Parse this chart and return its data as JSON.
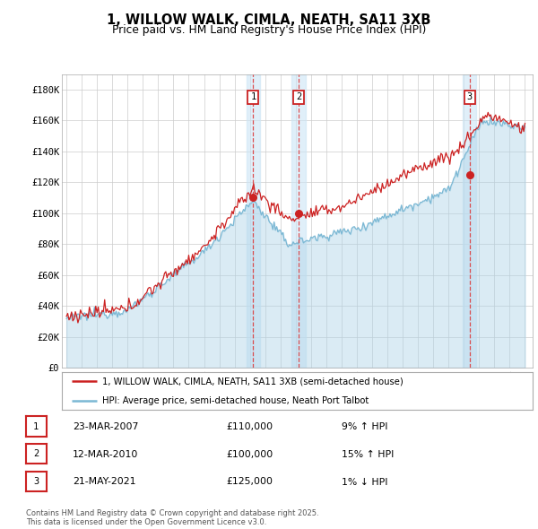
{
  "title": "1, WILLOW WALK, CIMLA, NEATH, SA11 3XB",
  "subtitle": "Price paid vs. HM Land Registry's House Price Index (HPI)",
  "ylim": [
    0,
    190000
  ],
  "yticks": [
    0,
    20000,
    40000,
    60000,
    80000,
    100000,
    120000,
    140000,
    160000,
    180000
  ],
  "ytick_labels": [
    "£0",
    "£20K",
    "£40K",
    "£60K",
    "£80K",
    "£100K",
    "£120K",
    "£140K",
    "£160K",
    "£180K"
  ],
  "year_start": 1995,
  "year_end": 2025,
  "hpi_color": "#aed4e8",
  "hpi_line_color": "#7bb8d4",
  "price_color": "#cc2222",
  "sale_dates_year": [
    2007.22,
    2010.19,
    2021.38
  ],
  "sale_prices": [
    110000,
    100000,
    125000
  ],
  "sale_labels": [
    "1",
    "2",
    "3"
  ],
  "sale_info": [
    {
      "label": "1",
      "date": "23-MAR-2007",
      "price": "£110,000",
      "hpi": "9% ↑ HPI"
    },
    {
      "label": "2",
      "date": "12-MAR-2010",
      "price": "£100,000",
      "hpi": "15% ↑ HPI"
    },
    {
      "label": "3",
      "date": "21-MAY-2021",
      "price": "£125,000",
      "hpi": "1% ↓ HPI"
    }
  ],
  "legend_entries": [
    "1, WILLOW WALK, CIMLA, NEATH, SA11 3XB (semi-detached house)",
    "HPI: Average price, semi-detached house, Neath Port Talbot"
  ],
  "footer": "Contains HM Land Registry data © Crown copyright and database right 2025.\nThis data is licensed under the Open Government Licence v3.0.",
  "background_color": "#ffffff",
  "grid_color": "#cccccc",
  "title_fontsize": 10.5,
  "subtitle_fontsize": 9
}
